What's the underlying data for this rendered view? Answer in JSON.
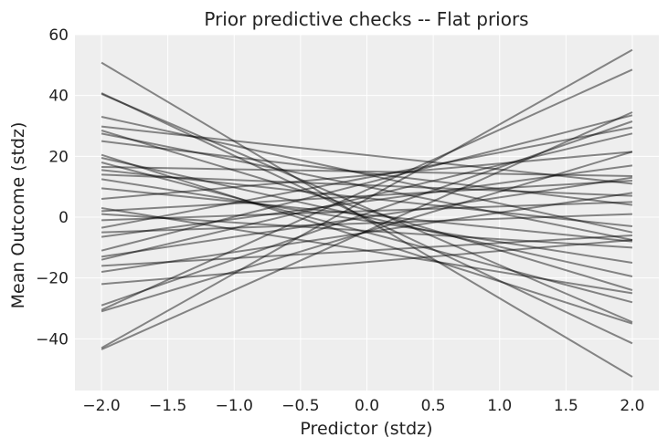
{
  "chart_data": {
    "type": "line",
    "title": "Prior predictive checks -- Flat priors",
    "xlabel": "Predictor (stdz)",
    "ylabel": "Mean Outcome (stdz)",
    "xlim": [
      -2.2,
      2.2
    ],
    "ylim": [
      -57,
      60
    ],
    "x_ticks": [
      -2.0,
      -1.5,
      -1.0,
      -0.5,
      0.0,
      0.5,
      1.0,
      1.5,
      2.0
    ],
    "x_tick_labels": [
      "−2.0",
      "−1.5",
      "−1.0",
      "−0.5",
      "0.0",
      "0.5",
      "1.0",
      "1.5",
      "2.0"
    ],
    "y_ticks": [
      -40,
      -20,
      0,
      20,
      40,
      60
    ],
    "y_tick_labels": [
      "−40",
      "−20",
      "0",
      "20",
      "40",
      "60"
    ],
    "grid": true,
    "line_color": "#000000",
    "line_opacity": 0.45,
    "background": "#eeeeee",
    "x": [
      -2.0,
      2.0
    ],
    "series": [
      {
        "values": [
          50.8,
          -52.5
        ]
      },
      {
        "values": [
          40.8,
          -41.5
        ]
      },
      {
        "values": [
          40.5,
          -34.5
        ]
      },
      {
        "values": [
          33.0,
          -5.0
        ]
      },
      {
        "values": [
          29.8,
          11.0
        ]
      },
      {
        "values": [
          28.5,
          -24.0
        ]
      },
      {
        "values": [
          27.5,
          -7.5
        ]
      },
      {
        "values": [
          25.0,
          4.0
        ]
      },
      {
        "values": [
          20.5,
          -35.0
        ]
      },
      {
        "values": [
          19.5,
          -19.5
        ]
      },
      {
        "values": [
          18.0,
          -28.0
        ]
      },
      {
        "values": [
          16.5,
          13.5
        ]
      },
      {
        "values": [
          15.5,
          -3.0
        ]
      },
      {
        "values": [
          14.0,
          7.0
        ]
      },
      {
        "values": [
          12.5,
          -15.0
        ]
      },
      {
        "values": [
          9.5,
          -8.0
        ]
      },
      {
        "values": [
          6.0,
          21.5
        ]
      },
      {
        "values": [
          3.0,
          -25.0
        ]
      },
      {
        "values": [
          2.0,
          12.0
        ]
      },
      {
        "values": [
          1.0,
          -10.0
        ]
      },
      {
        "values": [
          -1.0,
          5.0
        ]
      },
      {
        "values": [
          -3.5,
          29.5
        ]
      },
      {
        "values": [
          -5.0,
          1.0
        ]
      },
      {
        "values": [
          -6.5,
          17.0
        ]
      },
      {
        "values": [
          -11.0,
          33.5
        ]
      },
      {
        "values": [
          -13.0,
          13.0
        ]
      },
      {
        "values": [
          -14.0,
          27.5
        ]
      },
      {
        "values": [
          -16.0,
          -6.0
        ]
      },
      {
        "values": [
          -18.0,
          8.0
        ]
      },
      {
        "values": [
          -22.0,
          -7.5
        ]
      },
      {
        "values": [
          -29.0,
          31.5
        ]
      },
      {
        "values": [
          -30.5,
          48.5
        ]
      },
      {
        "values": [
          -31.0,
          21.5
        ]
      },
      {
        "values": [
          -43.0,
          55.0
        ]
      },
      {
        "values": [
          -43.5,
          34.5
        ]
      }
    ]
  }
}
